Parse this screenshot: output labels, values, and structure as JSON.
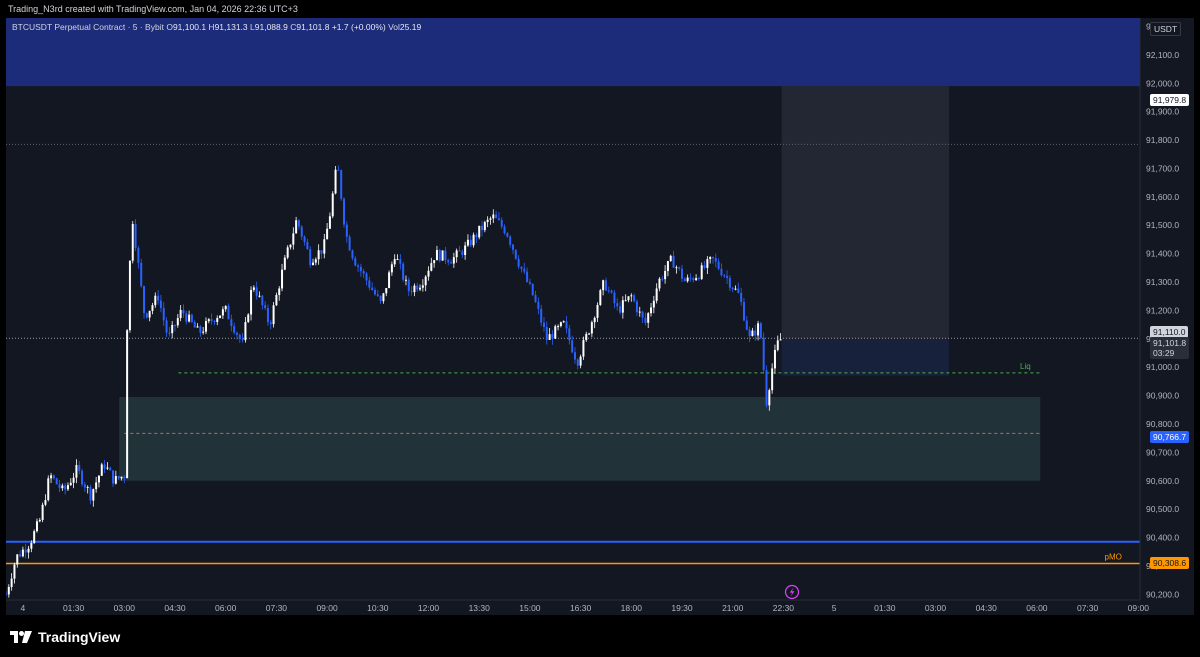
{
  "header": {
    "caption": "Trading_N3rd created with TradingView.com, Jan 04, 2026 22:36 UTC+3"
  },
  "legend": {
    "symbol": "BTCUSDT Perpetual Contract · 5 · Bybit",
    "o_label": "O",
    "o": "91,100.1",
    "h_label": "H",
    "h": "91,131.3",
    "l_label": "L",
    "l": "91,088.9",
    "c_label": "C",
    "c": "91,101.8",
    "change": "+1.7 (+0.00%)",
    "vol_label": "Vol",
    "vol": "25.19"
  },
  "currency_button": "USDT",
  "brand": "TradingView",
  "colors": {
    "up": "#ffffff",
    "down": "#2962ff",
    "background": "#131722",
    "zone_top": "#1e2f8a",
    "zone_demand": "#26373d",
    "blue_line": "#2962ff",
    "orange_line": "#ff9800",
    "liq_line": "#4caf50",
    "red_dash": "#ef5350"
  },
  "badges": {
    "top_zone_price": "91,979.8",
    "last_price": "91,110.0",
    "current_price": "91,101.8",
    "countdown": "03:29",
    "red_line_price": "90,766.7",
    "pmo_price": "90,308.6"
  },
  "chart_data": {
    "type": "candlestick",
    "symbol": "BTCUSDT",
    "timeframe": "5",
    "exchange": "Bybit",
    "y_ticks": [
      "90,200.0",
      "90,300.0",
      "90,400.0",
      "90,500.0",
      "90,600.0",
      "90,700.0",
      "90,800.0",
      "90,900.0",
      "91,000.0",
      "91,100.0",
      "91,200.0",
      "91,300.0",
      "91,400.0",
      "91,500.0",
      "91,600.0",
      "91,700.0",
      "91,800.0",
      "91,900.0",
      "92,000.0",
      "92,100.0",
      "92,200.0"
    ],
    "ylim": [
      90180,
      92230
    ],
    "x_ticks": [
      "4",
      "01:30",
      "03:00",
      "04:30",
      "06:00",
      "07:30",
      "09:00",
      "10:30",
      "12:00",
      "13:30",
      "15:00",
      "16:30",
      "18:00",
      "19:30",
      "21:00",
      "22:30",
      "5",
      "01:30",
      "03:00",
      "04:30",
      "06:00",
      "07:30",
      "09:00"
    ],
    "x_tick_hours": [
      0,
      1.5,
      3,
      4.5,
      6,
      7.5,
      9,
      10.5,
      12,
      13.5,
      15,
      16.5,
      18,
      19.5,
      21,
      22.5,
      24,
      25.5,
      27,
      28.5,
      30,
      31.5,
      33
    ],
    "xlim_hours": [
      -0.5,
      33.05
    ],
    "price_path": [
      [
        -0.5,
        90200
      ],
      [
        -0.2,
        90330
      ],
      [
        0.2,
        90380
      ],
      [
        0.5,
        90460
      ],
      [
        0.8,
        90620
      ],
      [
        1.2,
        90560
      ],
      [
        1.6,
        90640
      ],
      [
        2.0,
        90550
      ],
      [
        2.4,
        90660
      ],
      [
        2.7,
        90600
      ],
      [
        3.0,
        90620
      ],
      [
        3.1,
        91250
      ],
      [
        3.25,
        91520
      ],
      [
        3.6,
        91180
      ],
      [
        4.0,
        91250
      ],
      [
        4.3,
        91100
      ],
      [
        4.7,
        91200
      ],
      [
        5.2,
        91120
      ],
      [
        5.7,
        91180
      ],
      [
        6.0,
        91200
      ],
      [
        6.5,
        91080
      ],
      [
        6.8,
        91300
      ],
      [
        7.3,
        91150
      ],
      [
        7.7,
        91350
      ],
      [
        8.1,
        91520
      ],
      [
        8.5,
        91380
      ],
      [
        8.9,
        91420
      ],
      [
        9.1,
        91550
      ],
      [
        9.3,
        91720
      ],
      [
        9.55,
        91470
      ],
      [
        9.8,
        91380
      ],
      [
        10.2,
        91300
      ],
      [
        10.6,
        91220
      ],
      [
        11.0,
        91400
      ],
      [
        11.4,
        91270
      ],
      [
        11.8,
        91300
      ],
      [
        12.2,
        91400
      ],
      [
        12.7,
        91380
      ],
      [
        13.1,
        91420
      ],
      [
        13.5,
        91480
      ],
      [
        13.9,
        91530
      ],
      [
        14.3,
        91480
      ],
      [
        14.7,
        91360
      ],
      [
        15.1,
        91250
      ],
      [
        15.5,
        91100
      ],
      [
        16.0,
        91150
      ],
      [
        16.4,
        91020
      ],
      [
        16.8,
        91150
      ],
      [
        17.2,
        91300
      ],
      [
        17.6,
        91200
      ],
      [
        18.0,
        91250
      ],
      [
        18.4,
        91150
      ],
      [
        18.8,
        91300
      ],
      [
        19.2,
        91380
      ],
      [
        19.6,
        91300
      ],
      [
        20.0,
        91330
      ],
      [
        20.4,
        91380
      ],
      [
        20.8,
        91320
      ],
      [
        21.2,
        91250
      ],
      [
        21.5,
        91100
      ],
      [
        21.8,
        91150
      ],
      [
        22.0,
        90880
      ],
      [
        22.2,
        91020
      ],
      [
        22.35,
        91090
      ],
      [
        22.45,
        91102
      ]
    ],
    "overlays": [
      {
        "kind": "zone",
        "from": 91990,
        "to": 92230
      },
      {
        "kind": "zone",
        "from": 90600,
        "to": 90895
      },
      {
        "kind": "zone",
        "from": 90970,
        "to": 91100
      },
      {
        "kind": "zone",
        "from": 91100,
        "to": 91990
      },
      {
        "kind": "hline",
        "price": 91785
      },
      {
        "kind": "hline",
        "price": 91101.8
      },
      {
        "kind": "hline",
        "price": 90980,
        "label": "Liq"
      },
      {
        "kind": "hline",
        "price": 90766.7
      },
      {
        "kind": "hline",
        "price": 90385
      },
      {
        "kind": "hline",
        "price": 90308.6,
        "label": "pMO"
      }
    ]
  }
}
